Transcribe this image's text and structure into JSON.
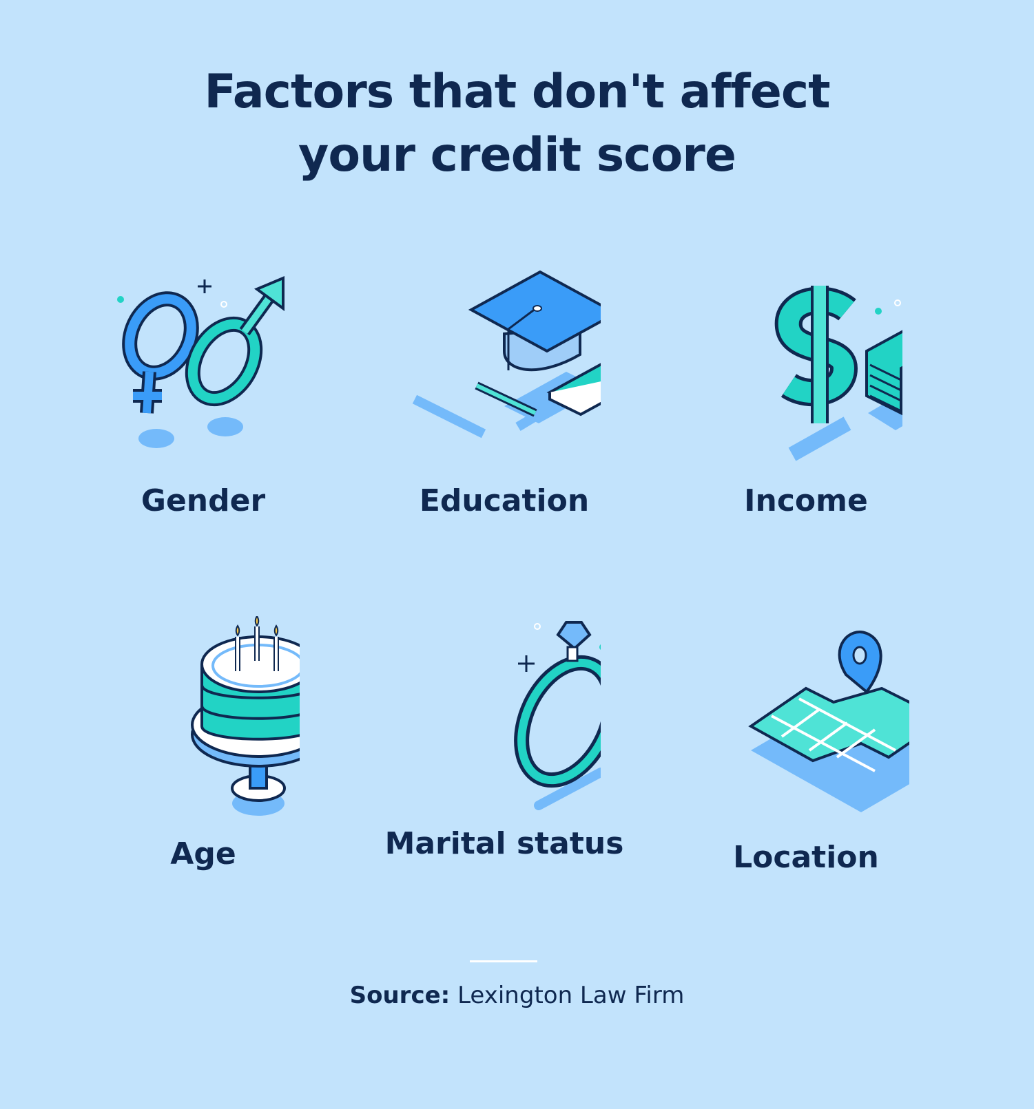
{
  "title": {
    "line1": "Factors that don't affect",
    "line2": "your credit score"
  },
  "factors": [
    {
      "label": "Gender",
      "icon": "gender-symbols-icon"
    },
    {
      "label": "Education",
      "icon": "graduation-cap-icon"
    },
    {
      "label": "Income",
      "icon": "dollar-money-icon"
    },
    {
      "label": "Age",
      "icon": "birthday-cake-icon"
    },
    {
      "label": "Marital status",
      "icon": "ring-icon"
    },
    {
      "label": "Location",
      "icon": "map-pin-icon"
    }
  ],
  "source": {
    "prefix": "Source:",
    "name": "Lexington Law Firm"
  },
  "colors": {
    "background": "#c2e3fc",
    "text": "#0f2850",
    "blue": "#3a9cf8",
    "teal": "#22d3c5",
    "shadow": "#74bafa"
  }
}
